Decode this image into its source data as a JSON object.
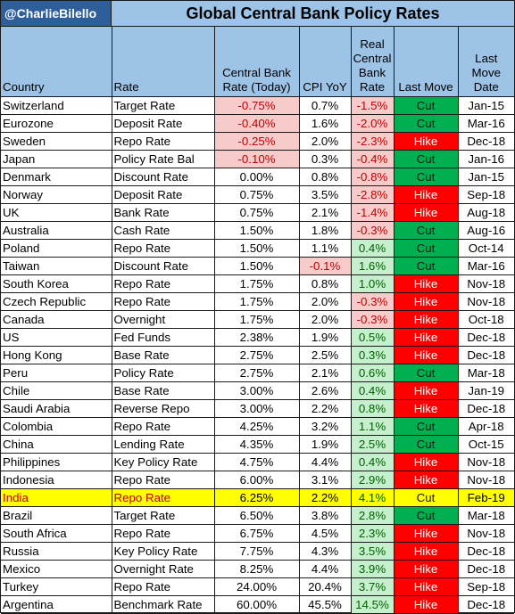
{
  "header": {
    "handle": "@CharlieBilello",
    "title": "Global Central Bank Policy Rates"
  },
  "colors": {
    "header_bg": "#9dc3e6",
    "handle_bg": "#2e5f9a",
    "cut": "#00b050",
    "hike": "#ff0000",
    "neg_fill": "#f8cbcb",
    "pos_fill": "#c6efce",
    "highlight": "#ffff00"
  },
  "columns": [
    "Country",
    "Rate",
    "Central Bank Rate (Today)",
    "CPI YoY",
    "Real Central Bank Rate",
    "Last Move",
    "Last Move Date"
  ],
  "chart_data": {
    "type": "table",
    "title": "Global Central Bank Policy Rates",
    "highlighted_row": "India",
    "rows": [
      [
        "Switzerland",
        "Target Rate",
        "-0.75%",
        "0.7%",
        "-1.5%",
        "Cut",
        "Jan-15"
      ],
      [
        "Eurozone",
        "Deposit Rate",
        "-0.40%",
        "1.6%",
        "-2.0%",
        "Cut",
        "Mar-16"
      ],
      [
        "Sweden",
        "Repo Rate",
        "-0.25%",
        "2.0%",
        "-2.3%",
        "Hike",
        "Dec-18"
      ],
      [
        "Japan",
        "Policy Rate Bal",
        "-0.10%",
        "0.3%",
        "-0.4%",
        "Cut",
        "Jan-16"
      ],
      [
        "Denmark",
        "Discount Rate",
        "0.00%",
        "0.8%",
        "-0.8%",
        "Cut",
        "Jan-15"
      ],
      [
        "Norway",
        "Deposit Rate",
        "0.75%",
        "3.5%",
        "-2.8%",
        "Hike",
        "Sep-18"
      ],
      [
        "UK",
        "Bank Rate",
        "0.75%",
        "2.1%",
        "-1.4%",
        "Hike",
        "Aug-18"
      ],
      [
        "Australia",
        "Cash Rate",
        "1.50%",
        "1.8%",
        "-0.3%",
        "Cut",
        "Aug-16"
      ],
      [
        "Poland",
        "Repo Rate",
        "1.50%",
        "1.1%",
        "0.4%",
        "Cut",
        "Oct-14"
      ],
      [
        "Taiwan",
        "Discount Rate",
        "1.50%",
        "-0.1%",
        "1.6%",
        "Cut",
        "Mar-16"
      ],
      [
        "South Korea",
        "Repo Rate",
        "1.75%",
        "0.8%",
        "1.0%",
        "Hike",
        "Nov-18"
      ],
      [
        "Czech Republic",
        "Repo Rate",
        "1.75%",
        "2.0%",
        "-0.3%",
        "Hike",
        "Nov-18"
      ],
      [
        "Canada",
        "Overnight",
        "1.75%",
        "2.0%",
        "-0.3%",
        "Hike",
        "Oct-18"
      ],
      [
        "US",
        "Fed Funds",
        "2.38%",
        "1.9%",
        "0.5%",
        "Hike",
        "Dec-18"
      ],
      [
        "Hong Kong",
        "Base Rate",
        "2.75%",
        "2.5%",
        "0.3%",
        "Hike",
        "Dec-18"
      ],
      [
        "Peru",
        "Policy Rate",
        "2.75%",
        "2.1%",
        "0.6%",
        "Cut",
        "Mar-18"
      ],
      [
        "Chile",
        "Base Rate",
        "3.00%",
        "2.6%",
        "0.4%",
        "Hike",
        "Jan-19"
      ],
      [
        "Saudi Arabia",
        "Reverse Repo",
        "3.00%",
        "2.2%",
        "0.8%",
        "Hike",
        "Dec-18"
      ],
      [
        "Colombia",
        "Repo Rate",
        "4.25%",
        "3.2%",
        "1.1%",
        "Cut",
        "Apr-18"
      ],
      [
        "China",
        "Lending Rate",
        "4.35%",
        "1.9%",
        "2.5%",
        "Cut",
        "Oct-15"
      ],
      [
        "Philippines",
        "Key Policy Rate",
        "4.75%",
        "4.4%",
        "0.4%",
        "Hike",
        "Nov-18"
      ],
      [
        "Indonesia",
        "Repo Rate",
        "6.00%",
        "3.1%",
        "2.9%",
        "Hike",
        "Nov-18"
      ],
      [
        "India",
        "Repo Rate",
        "6.25%",
        "2.2%",
        "4.1%",
        "Cut",
        "Feb-19"
      ],
      [
        "Brazil",
        "Target Rate",
        "6.50%",
        "3.8%",
        "2.8%",
        "Cut",
        "Mar-18"
      ],
      [
        "South Africa",
        "Repo Rate",
        "6.75%",
        "4.5%",
        "2.3%",
        "Hike",
        "Nov-18"
      ],
      [
        "Russia",
        "Key Policy Rate",
        "7.75%",
        "4.3%",
        "3.5%",
        "Hike",
        "Dec-18"
      ],
      [
        "Mexico",
        "Overnight Rate",
        "8.25%",
        "4.4%",
        "3.9%",
        "Hike",
        "Dec-18"
      ],
      [
        "Turkey",
        "Repo Rate",
        "24.00%",
        "20.4%",
        "3.7%",
        "Hike",
        "Sep-18"
      ],
      [
        "Argentina",
        "Benchmark Rate",
        "60.00%",
        "45.5%",
        "14.5%",
        "Hike",
        "Dec-18"
      ]
    ]
  }
}
